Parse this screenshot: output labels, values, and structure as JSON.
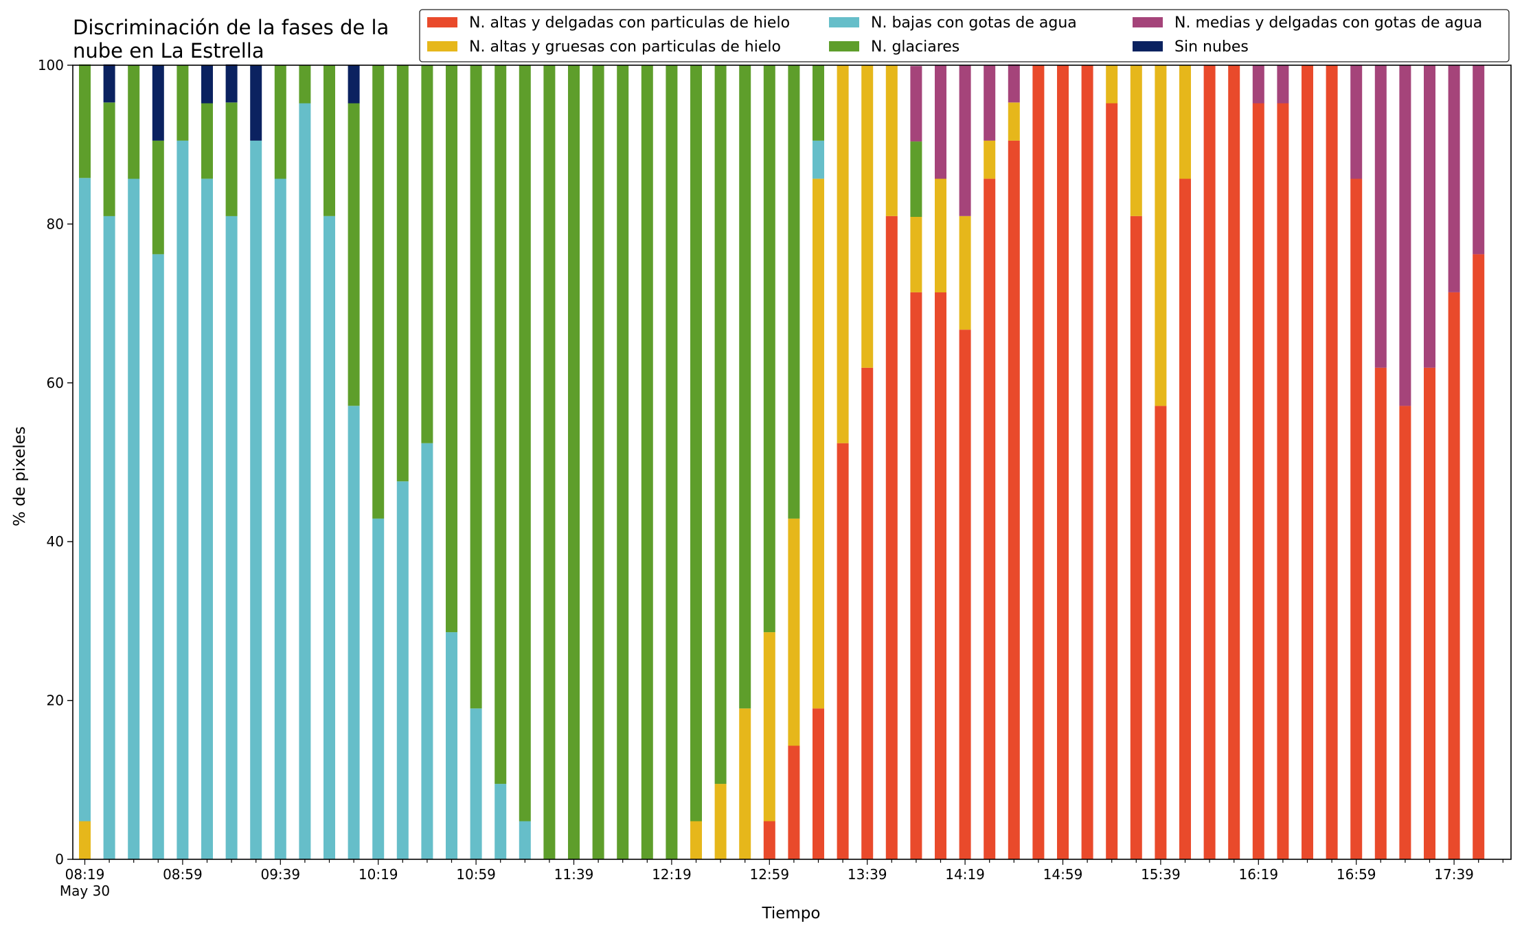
{
  "chart_data": {
    "type": "bar",
    "stacked": true,
    "title": "Discriminación de la fases de la\nnube en La Estrella",
    "xlabel": "Tiempo",
    "ylabel": "% de pixeles",
    "ylim": [
      0,
      100
    ],
    "yticks": [
      "0",
      "20",
      "40",
      "60",
      "80",
      "100"
    ],
    "x_tick_labels": [
      "08:19",
      "08:59",
      "09:39",
      "10:19",
      "10:59",
      "11:39",
      "12:19",
      "12:59",
      "13:39",
      "14:19",
      "14:59",
      "15:39",
      "16:19",
      "16:59",
      "17:39"
    ],
    "x_date_label": "May 30",
    "legend_position": "top-right",
    "categories": [
      "08:19",
      "08:29",
      "08:39",
      "08:49",
      "08:59",
      "09:09",
      "09:19",
      "09:29",
      "09:39",
      "09:49",
      "09:59",
      "10:09",
      "10:19",
      "10:29",
      "10:39",
      "10:49",
      "10:59",
      "11:09",
      "11:19",
      "11:29",
      "11:39",
      "11:49",
      "11:59",
      "12:09",
      "12:19",
      "12:29",
      "12:39",
      "12:49",
      "12:59",
      "13:09",
      "13:19",
      "13:29",
      "13:39",
      "13:49",
      "13:59",
      "14:09",
      "14:19",
      "14:29",
      "14:39",
      "14:49",
      "14:59",
      "15:09",
      "15:19",
      "15:29",
      "15:39",
      "15:49",
      "15:59",
      "16:09",
      "16:19",
      "16:29",
      "16:39",
      "16:49",
      "16:59",
      "17:09",
      "17:19",
      "17:29",
      "17:39",
      "17:49"
    ],
    "series": [
      {
        "name": "N. altas y delgadas con particulas de hielo",
        "color": "#e94a2b",
        "values": [
          0,
          0,
          0,
          0,
          0,
          0,
          0,
          0,
          0,
          0,
          0,
          0,
          0,
          0,
          0,
          0,
          0,
          0,
          0,
          0,
          0,
          0,
          0,
          0,
          0,
          0,
          0,
          0,
          4.8,
          14.3,
          19.0,
          52.4,
          61.9,
          81.0,
          71.4,
          71.4,
          66.7,
          85.7,
          90.5,
          100,
          100,
          100,
          95.2,
          81.0,
          57.1,
          85.7,
          100,
          100,
          95.2,
          95.2,
          100,
          100,
          85.7,
          61.9,
          57.1,
          61.9,
          71.4,
          76.2
        ]
      },
      {
        "name": "N. altas y gruesas con particulas de hielo",
        "color": "#e6b71b",
        "values": [
          4.8,
          0,
          0,
          0,
          0,
          0,
          0,
          0,
          0,
          0,
          0,
          0,
          0,
          0,
          0,
          0,
          0,
          0,
          0,
          0,
          0,
          0,
          0,
          0,
          0,
          4.8,
          9.5,
          19.0,
          23.8,
          28.6,
          66.7,
          47.6,
          38.1,
          19.0,
          9.5,
          14.3,
          14.3,
          4.8,
          4.8,
          0,
          0,
          0,
          4.8,
          19.0,
          42.9,
          14.3,
          0,
          0,
          0,
          0,
          0,
          0,
          0,
          0,
          0,
          0,
          0,
          0
        ]
      },
      {
        "name": "N. bajas con gotas de agua",
        "color": "#66bec9",
        "values": [
          81.0,
          81.0,
          85.7,
          76.2,
          90.5,
          85.7,
          81.0,
          90.5,
          85.7,
          95.2,
          81.0,
          57.1,
          42.9,
          47.6,
          52.4,
          28.6,
          19.0,
          9.5,
          4.8,
          0,
          0,
          0,
          0,
          0,
          0,
          0,
          0,
          0,
          0,
          0,
          4.8,
          0,
          0,
          0,
          0,
          0,
          0,
          0,
          0,
          0,
          0,
          0,
          0,
          0,
          0,
          0,
          0,
          0,
          0,
          0,
          0,
          0,
          0,
          0,
          0,
          0,
          0,
          0
        ]
      },
      {
        "name": "N. glaciares",
        "color": "#5e9e2b",
        "values": [
          14.3,
          14.3,
          14.3,
          14.3,
          9.5,
          9.5,
          14.3,
          0,
          14.3,
          4.8,
          19.0,
          38.1,
          57.1,
          52.4,
          47.6,
          71.4,
          81.0,
          90.5,
          95.2,
          100,
          100,
          100,
          100,
          100,
          100,
          95.2,
          90.5,
          81.0,
          71.4,
          57.1,
          9.5,
          0,
          0,
          0,
          9.5,
          0,
          0,
          0,
          0,
          0,
          0,
          0,
          0,
          0,
          0,
          0,
          0,
          0,
          0,
          0,
          0,
          0,
          0,
          0,
          0,
          0,
          0,
          0
        ]
      },
      {
        "name": "N. medias y delgadas con gotas de agua",
        "color": "#a5447a",
        "values": [
          0,
          0,
          0,
          0,
          0,
          0,
          0,
          0,
          0,
          0,
          0,
          0,
          0,
          0,
          0,
          0,
          0,
          0,
          0,
          0,
          0,
          0,
          0,
          0,
          0,
          0,
          0,
          0,
          0,
          0,
          0,
          0,
          0,
          0,
          9.5,
          14.3,
          19.0,
          9.5,
          4.8,
          0,
          0,
          0,
          0,
          0,
          0,
          0,
          0,
          0,
          4.8,
          4.8,
          0,
          0,
          14.3,
          38.1,
          42.9,
          38.1,
          28.6,
          23.8
        ]
      },
      {
        "name": "Sin nubes",
        "color": "#0b2260",
        "values": [
          0,
          4.8,
          0,
          9.5,
          0,
          4.8,
          4.8,
          9.5,
          0,
          0,
          0,
          4.8,
          0,
          0,
          0,
          0,
          0,
          0,
          0,
          0,
          0,
          0,
          0,
          0,
          0,
          0,
          0,
          0,
          0,
          0,
          0,
          0,
          0,
          0,
          0,
          0,
          0,
          0,
          0,
          0,
          0,
          0,
          0,
          0,
          0,
          0,
          0,
          0,
          0,
          0,
          0,
          0,
          0,
          0,
          0,
          0,
          0,
          0
        ]
      }
    ]
  }
}
